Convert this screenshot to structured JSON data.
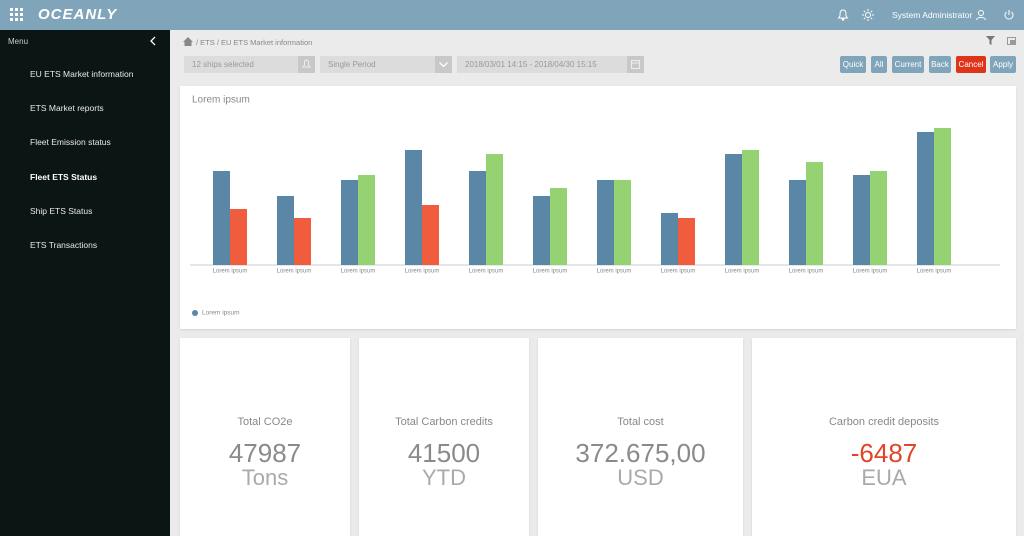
{
  "header": {
    "logo": "OCEANLY",
    "user": "System Administrator"
  },
  "sidebar": {
    "title": "Menu",
    "items": [
      "EU ETS Market information",
      "ETS Market reports",
      "Fleet Emission status",
      "Fleet ETS Status",
      "Ship ETS Status",
      "ETS Transactions"
    ]
  },
  "breadcrumb": "/ ETS / EU ETS Market information",
  "filters": {
    "ships": "12 ships selected",
    "period": "Single Period",
    "range": "2018/03/01 14:15 - 2018/04/30 15:15"
  },
  "buttons": [
    "Quick",
    "All",
    "Current",
    "Back",
    "Cancel",
    "Apply"
  ],
  "chart_data": {
    "type": "bar",
    "title": "Lorem ipsum",
    "categories": [
      "Lorem ipsum",
      "Lorem ipsum",
      "Lorem ipsum",
      "Lorem ipsum",
      "Lorem ipsum",
      "Lorem ipsum",
      "Lorem ipsum",
      "Lorem ipsum",
      "Lorem ipsum",
      "Lorem ipsum",
      "Lorem ipsum",
      "Lorem ipsum"
    ],
    "series": [
      {
        "name": "Lorem ipsum",
        "color": "#5b87a6",
        "values": [
          94,
          69,
          85,
          115,
          94,
          69,
          85,
          52,
          111,
          85,
          90,
          133
        ]
      },
      {
        "colors": [
          "#ef5d3e",
          "#ef5d3e",
          "#95d272",
          "#ef5d3e",
          "#95d272",
          "#95d272",
          "#95d272",
          "#ef5d3e",
          "#95d272",
          "#95d272",
          "#95d272",
          "#95d272"
        ],
        "values": [
          56,
          47,
          90,
          60,
          111,
          77,
          85,
          47,
          115,
          103,
          94,
          137
        ]
      }
    ],
    "ylim": [
      0,
      150
    ]
  },
  "kpis": [
    {
      "title": "Total CO2e",
      "value": "47987",
      "unit": "Tons"
    },
    {
      "title": "Total Carbon credits",
      "value": "41500",
      "unit": "YTD"
    },
    {
      "title": "Total cost",
      "value": "372.675,00",
      "unit": "USD"
    },
    {
      "title": "Carbon credit deposits",
      "value": "-6487",
      "unit": "EUA",
      "color": "#e0452a"
    }
  ]
}
